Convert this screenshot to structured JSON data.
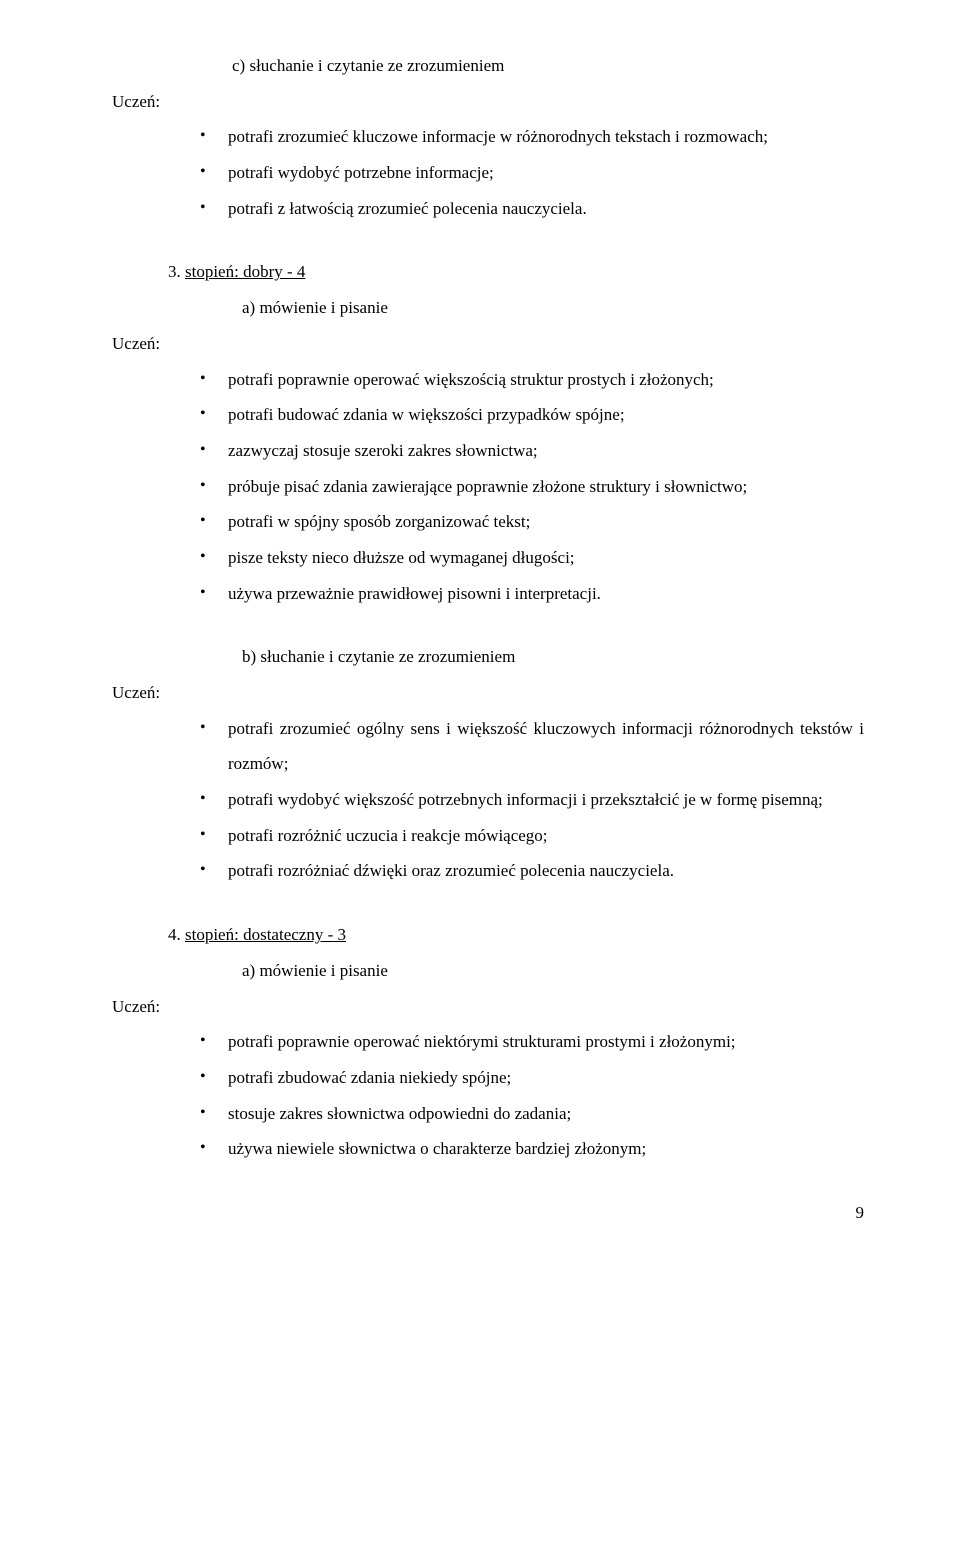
{
  "section_c": {
    "label": "c)  słuchanie i czytanie ze zrozumieniem",
    "uczen": "Uczeń:",
    "bullets": [
      "potrafi zrozumieć kluczowe informacje w różnorodnych tekstach i rozmowach;",
      "potrafi wydobyć potrzebne informacje;",
      "potrafi z łatwością zrozumieć polecenia nauczyciela."
    ]
  },
  "section_3": {
    "number": "3.",
    "title": "stopień: dobry - 4",
    "sub_a": "a)   mówienie i pisanie",
    "uczen": "Uczeń:",
    "bullets": [
      "potrafi poprawnie operować większością struktur prostych i złożonych;",
      "potrafi budować zdania w większości przypadków spójne;",
      "zazwyczaj stosuje szeroki zakres słownictwa;",
      "próbuje pisać zdania zawierające poprawnie złożone struktury i słownictwo;",
      "potrafi w spójny sposób zorganizować tekst;",
      "pisze teksty nieco dłuższe od wymaganej długości;",
      "używa przeważnie prawidłowej pisowni i interpretacji."
    ],
    "sub_b": "b)   słuchanie i czytanie ze zrozumieniem",
    "uczen_b": "Uczeń:",
    "bullets_b": [
      "potrafi zrozumieć ogólny sens i większość kluczowych informacji różnorodnych tekstów i rozmów;",
      "potrafi wydobyć większość potrzebnych informacji i przekształcić je w formę pisemną;",
      "potrafi rozróżnić uczucia i reakcje mówiącego;",
      "potrafi rozróżniać dźwięki oraz zrozumieć polecenia nauczyciela."
    ]
  },
  "section_4": {
    "number": "4.",
    "title": "stopień: dostateczny - 3",
    "sub_a": "a)   mówienie i pisanie",
    "uczen": "Uczeń:",
    "bullets": [
      "potrafi poprawnie operować niektórymi strukturami prostymi i złożonymi;",
      "potrafi zbudować zdania niekiedy spójne;",
      "stosuje zakres słownictwa odpowiedni do zadania;",
      "używa niewiele słownictwa o charakterze bardziej złożonym;"
    ]
  },
  "page_number": "9"
}
